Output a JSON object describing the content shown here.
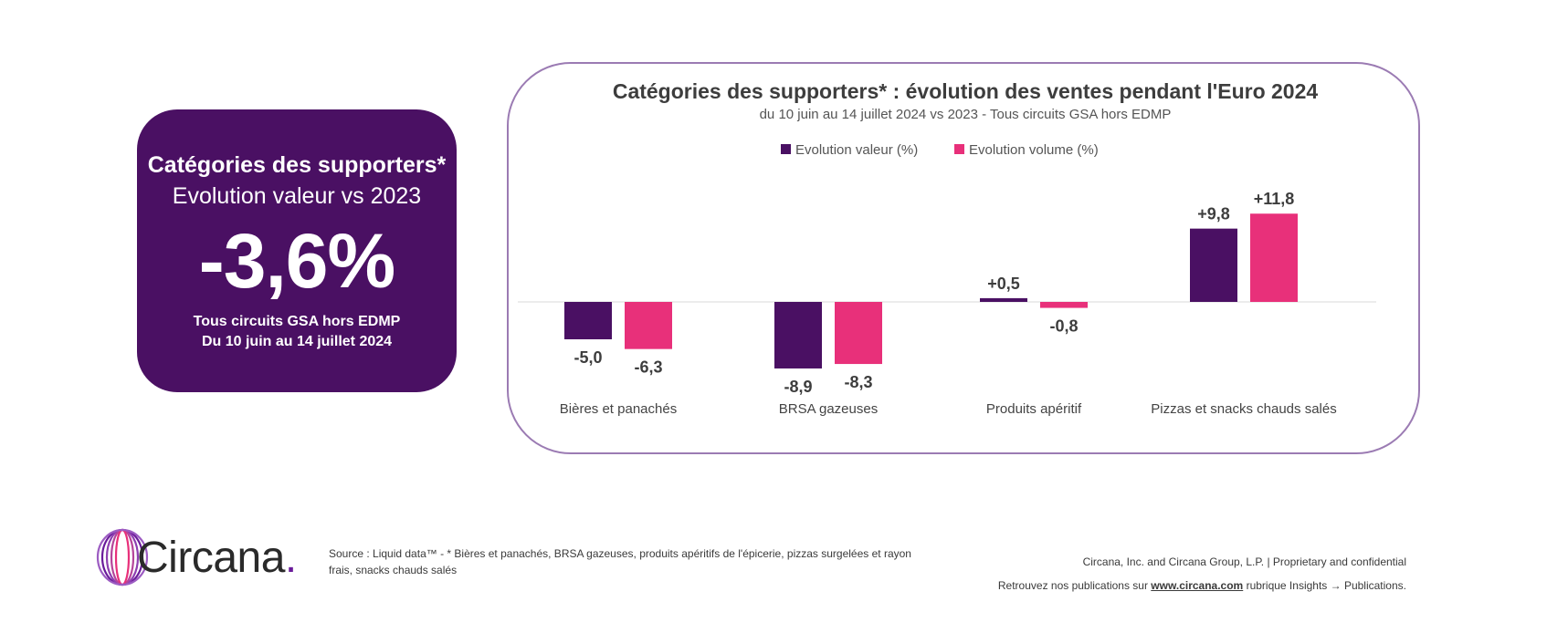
{
  "kpi": {
    "title": "Catégories des supporters*",
    "subtitle": "Evolution valeur vs 2023",
    "value": "-3,6%",
    "scope": "Tous circuits GSA hors EDMP",
    "period": "Du 10 juin au 14 juillet 2024"
  },
  "chart_data": {
    "type": "bar",
    "title": "Catégories des supporters* : évolution des ventes pendant l'Euro 2024",
    "subtitle": "du 10 juin au 14 juillet 2024 vs 2023 - Tous circuits GSA hors EDMP",
    "categories": [
      "Bières et panachés",
      "BRSA gazeuses",
      "Produits apéritif",
      "Pizzas et snacks chauds salés"
    ],
    "series": [
      {
        "name": "Evolution valeur (%)",
        "values": [
          -5.0,
          -8.9,
          0.5,
          9.8
        ],
        "labels": [
          "-5,0",
          "-8,9",
          "+0,5",
          "+9,8"
        ],
        "color": "#4a1063"
      },
      {
        "name": "Evolution volume (%)",
        "values": [
          -6.3,
          -8.3,
          -0.8,
          11.8
        ],
        "labels": [
          "-6,3",
          "-8,3",
          "-0,8",
          "+11,8"
        ],
        "color": "#e8307a"
      }
    ],
    "legend_position": "top-center",
    "grid": false,
    "ylim": [
      -12,
      13
    ]
  },
  "footer": {
    "logo_text": "Circana",
    "logo_dot": ".",
    "source_line1": "Source : Liquid data™ - * Bières et panachés, BRSA gazeuses, produits apéritifs de l'épicerie, pizzas surgelées et rayon",
    "source_line2": "frais, snacks chauds salés",
    "legal_line1": "Circana, Inc. and Circana Group, L.P. |  Proprietary and confidential",
    "legal_prefix": "Retrouvez nos publications sur ",
    "legal_link": "www.circana.com",
    "legal_suffix": " rubrique Insights → Publications."
  },
  "colors": {
    "brand_purple": "#4a1063",
    "brand_pink": "#e8307a",
    "card_border": "#9b7bb3"
  }
}
